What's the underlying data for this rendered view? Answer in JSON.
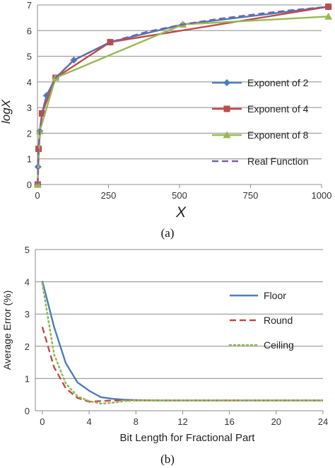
{
  "chart_data": [
    {
      "type": "line",
      "title": "",
      "xlabel": "X",
      "ylabel": "logX",
      "xlim": [
        0,
        1000
      ],
      "ylim": [
        0,
        7
      ],
      "xticks": [
        0,
        250,
        500,
        750,
        1000
      ],
      "yticks": [
        0,
        1,
        2,
        3,
        4,
        5,
        6,
        7
      ],
      "grid": "horizontal",
      "legend_position": "right",
      "caption": "(a)",
      "series": [
        {
          "name": "Exponent of 2",
          "color": "#4a7ebb",
          "dash": "solid",
          "marker": "diamond",
          "x": [
            1,
            2,
            4,
            8,
            16,
            32,
            64,
            128,
            256,
            512,
            1024
          ],
          "y": [
            0,
            0.69,
            1.39,
            2.08,
            2.77,
            3.47,
            4.16,
            4.85,
            5.55,
            6.24,
            6.93
          ]
        },
        {
          "name": "Exponent of 4",
          "color": "#be4b48",
          "dash": "solid",
          "marker": "square",
          "x": [
            1,
            4,
            16,
            64,
            256,
            1024
          ],
          "y": [
            0,
            1.39,
            2.77,
            4.16,
            5.55,
            6.93
          ]
        },
        {
          "name": "Exponent of 8",
          "color": "#98b954",
          "dash": "solid",
          "marker": "triangle",
          "x": [
            1,
            8,
            64,
            512,
            1024
          ],
          "y": [
            0,
            2.08,
            4.16,
            6.24,
            6.55
          ]
        },
        {
          "name": "Real Function",
          "color": "#7d60a0",
          "dash": "dashed",
          "marker": "none",
          "x": [
            1,
            2,
            4,
            8,
            16,
            32,
            64,
            128,
            256,
            384,
            512,
            640,
            768,
            896,
            1024
          ],
          "y": [
            0,
            0.69,
            1.39,
            2.08,
            2.77,
            3.47,
            4.16,
            4.85,
            5.55,
            5.95,
            6.24,
            6.46,
            6.64,
            6.8,
            6.93
          ]
        }
      ]
    },
    {
      "type": "line",
      "title": "",
      "xlabel": "Bit Length for Fractional Part",
      "ylabel": "Average Error (%)",
      "xlim": [
        -0.6,
        24
      ],
      "ylim": [
        0,
        5
      ],
      "xticks": [
        0,
        4,
        8,
        12,
        16,
        20,
        24
      ],
      "yticks": [
        0,
        1,
        2,
        3,
        4,
        5
      ],
      "grid": "horizontal",
      "legend_position": "right",
      "caption": "(b)",
      "series": [
        {
          "name": "Floor",
          "color": "#4a7ebb",
          "dash": "solid",
          "x": [
            0,
            1,
            2,
            3,
            4,
            5,
            6,
            7,
            8,
            10,
            12,
            16,
            20,
            24
          ],
          "y": [
            4.02,
            2.6,
            1.48,
            0.88,
            0.62,
            0.42,
            0.37,
            0.34,
            0.33,
            0.32,
            0.32,
            0.32,
            0.32,
            0.32
          ]
        },
        {
          "name": "Round",
          "color": "#be4b48",
          "dash": "dashed",
          "x": [
            0,
            1,
            2,
            3,
            4,
            5,
            6,
            7,
            8,
            10,
            12,
            16,
            20,
            24
          ],
          "y": [
            2.6,
            1.35,
            0.7,
            0.4,
            0.28,
            0.3,
            0.32,
            0.32,
            0.32,
            0.32,
            0.32,
            0.32,
            0.32,
            0.32
          ]
        },
        {
          "name": "Ceiling",
          "color": "#98b954",
          "dash": "dotted",
          "x": [
            0,
            1,
            2,
            3,
            4,
            5,
            6,
            7,
            8,
            10,
            12,
            16,
            20,
            24
          ],
          "y": [
            3.95,
            1.75,
            0.85,
            0.45,
            0.3,
            0.22,
            0.25,
            0.3,
            0.32,
            0.32,
            0.32,
            0.32,
            0.32,
            0.32
          ]
        }
      ]
    }
  ]
}
